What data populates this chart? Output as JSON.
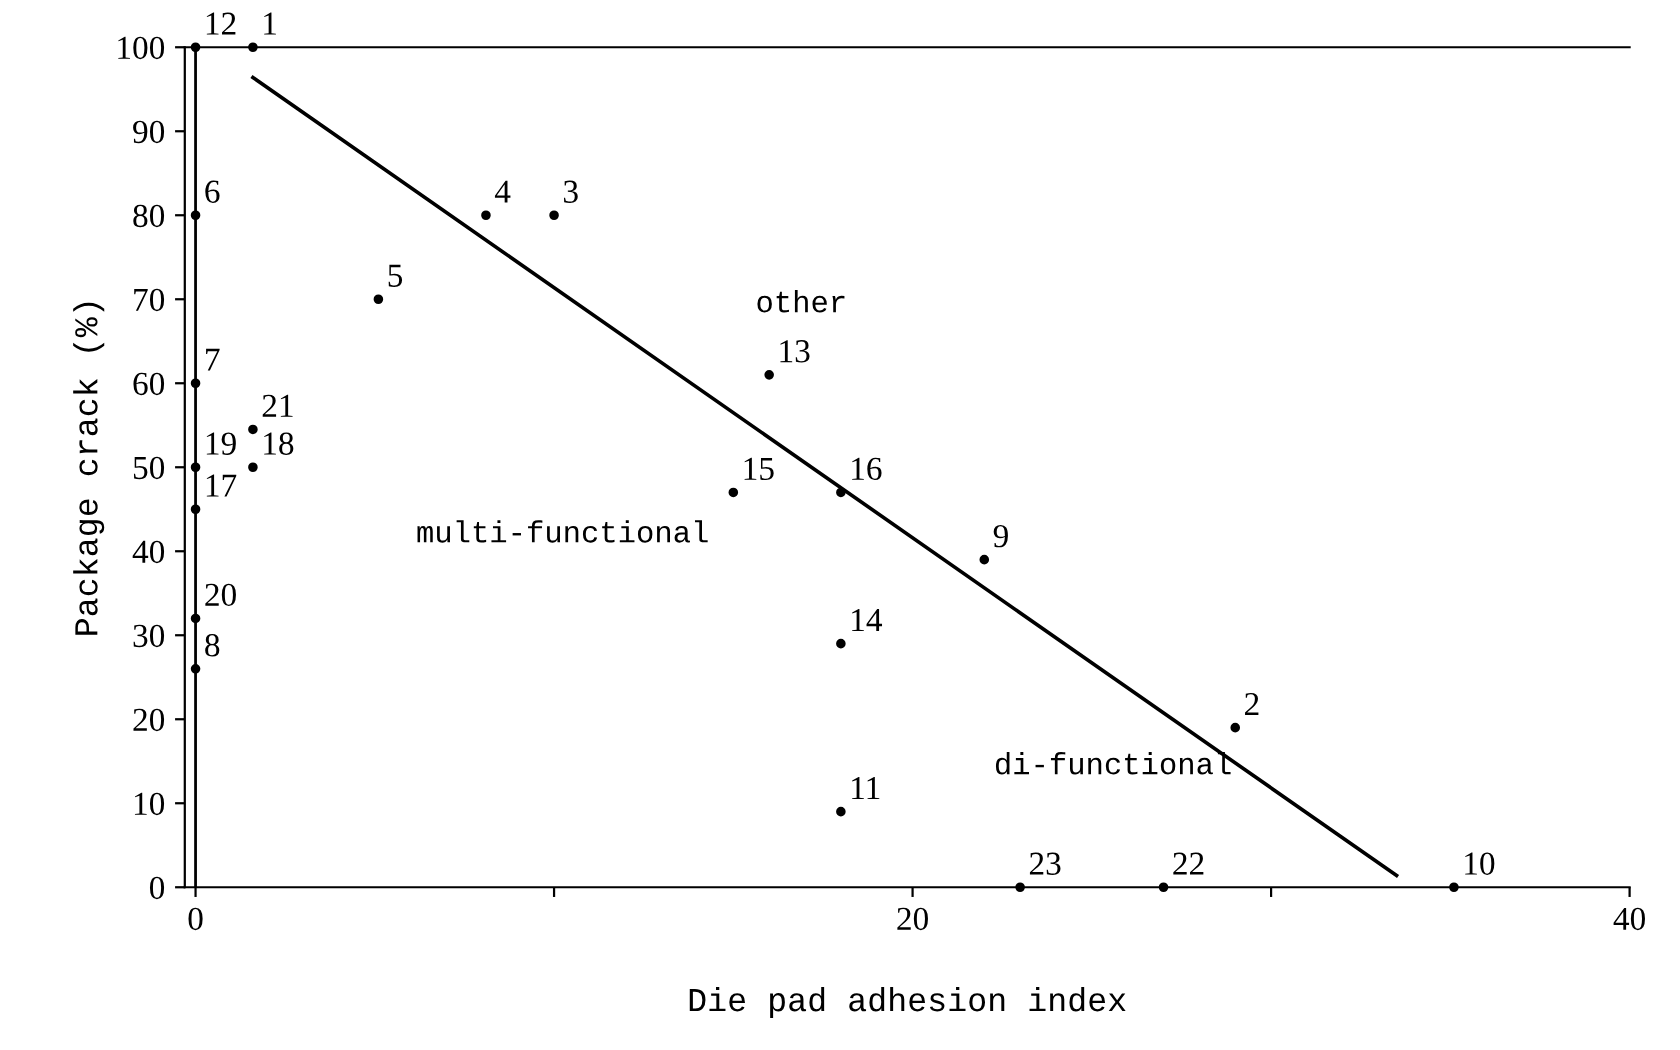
{
  "chart_data": {
    "type": "scatter",
    "xlabel": "Die pad adhesion index",
    "ylabel": "Package crack (%)",
    "xlim": [
      -0.3,
      40
    ],
    "ylim": [
      0,
      100
    ],
    "xticks": [
      0,
      {
        "value": 10,
        "label": null
      },
      20,
      {
        "value": 30,
        "label": null
      },
      40
    ],
    "yticks": [
      0,
      10,
      20,
      30,
      40,
      50,
      60,
      70,
      80,
      90,
      100
    ],
    "grid": false,
    "legend": false,
    "series": [
      {
        "marker": "circle",
        "color": "#000000",
        "x": [
          1.6,
          29,
          10,
          8.1,
          5.1,
          0,
          0,
          0,
          22,
          35.1,
          18,
          0,
          16,
          18,
          15,
          18,
          0,
          1.6,
          0,
          0,
          1.6,
          27,
          23
        ],
        "values": [
          100,
          19,
          80,
          80,
          70,
          80,
          60,
          26,
          39,
          0,
          9,
          100,
          61,
          29,
          47,
          47,
          45,
          50,
          50,
          32,
          54.5,
          0,
          0
        ]
      },
      {
        "type": "line",
        "color": "#000000",
        "line_style": "solid",
        "x": [
          1.6,
          33.5
        ],
        "values": [
          96.4,
          1.4
        ]
      }
    ],
    "ref_lines": [
      {
        "axis": "x",
        "value": 0,
        "color": "#000000",
        "line_style": "solid"
      }
    ],
    "annotations": [
      {
        "text": "1",
        "x": 1.6,
        "y": 100
      },
      {
        "text": "2",
        "x": 29,
        "y": 19
      },
      {
        "text": "3",
        "x": 10,
        "y": 80
      },
      {
        "text": "4",
        "x": 8.1,
        "y": 80
      },
      {
        "text": "5",
        "x": 5.1,
        "y": 70
      },
      {
        "text": "6",
        "x": 0,
        "y": 80
      },
      {
        "text": "7",
        "x": 0,
        "y": 60
      },
      {
        "text": "8",
        "x": 0,
        "y": 26
      },
      {
        "text": "9",
        "x": 22,
        "y": 39
      },
      {
        "text": "10",
        "x": 35.1,
        "y": 0
      },
      {
        "text": "11",
        "x": 18,
        "y": 9
      },
      {
        "text": "12",
        "x": 0,
        "y": 100
      },
      {
        "text": "13",
        "x": 16,
        "y": 61
      },
      {
        "text": "14",
        "x": 18,
        "y": 29
      },
      {
        "text": "15",
        "x": 15,
        "y": 47
      },
      {
        "text": "16",
        "x": 18,
        "y": 47
      },
      {
        "text": "17",
        "x": 0,
        "y": 45
      },
      {
        "text": "18",
        "x": 1.6,
        "y": 50
      },
      {
        "text": "19",
        "x": 0,
        "y": 50
      },
      {
        "text": "20",
        "x": 0,
        "y": 32
      },
      {
        "text": "21",
        "x": 1.6,
        "y": 54.5
      },
      {
        "text": "22",
        "x": 27,
        "y": 0
      },
      {
        "text": "23",
        "x": 23,
        "y": 0
      },
      "other",
      "multi-functional",
      "di-functional"
    ]
  }
}
